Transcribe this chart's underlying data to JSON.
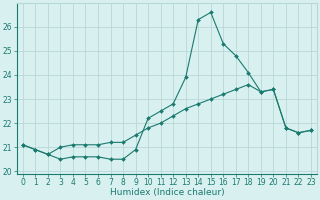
{
  "xlabel": "Humidex (Indice chaleur)",
  "x": [
    0,
    1,
    2,
    3,
    4,
    5,
    6,
    7,
    8,
    9,
    10,
    11,
    12,
    13,
    14,
    15,
    16,
    17,
    18,
    19,
    20,
    21,
    22,
    23
  ],
  "line1_y": [
    21.1,
    20.9,
    20.7,
    20.5,
    20.6,
    20.6,
    20.6,
    20.5,
    20.5,
    20.9,
    22.2,
    22.5,
    22.8,
    23.9,
    26.3,
    26.6,
    25.3,
    24.8,
    24.1,
    23.3,
    23.4,
    21.8,
    21.6,
    21.7
  ],
  "line2_y": [
    21.1,
    20.9,
    20.7,
    21.0,
    21.1,
    21.1,
    21.1,
    21.2,
    21.2,
    21.5,
    21.8,
    22.0,
    22.3,
    22.6,
    22.8,
    23.0,
    23.2,
    23.4,
    23.6,
    23.3,
    23.4,
    21.8,
    21.6,
    21.7
  ],
  "line_color": "#1a7a6e",
  "bg_color": "#d8f0f0",
  "grid_color": "#b8d8d8",
  "ylim": [
    19.9,
    27.0
  ],
  "xlim": [
    -0.5,
    23.5
  ],
  "yticks": [
    20,
    21,
    22,
    23,
    24,
    25,
    26
  ],
  "xticks": [
    0,
    1,
    2,
    3,
    4,
    5,
    6,
    7,
    8,
    9,
    10,
    11,
    12,
    13,
    14,
    15,
    16,
    17,
    18,
    19,
    20,
    21,
    22,
    23
  ],
  "tick_fontsize": 5.5,
  "xlabel_fontsize": 6.5,
  "marker_size": 2.0,
  "linewidth": 0.8
}
